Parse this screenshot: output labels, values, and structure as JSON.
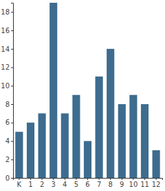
{
  "chart_data": {
    "type": "bar",
    "categories": [
      "K",
      "1",
      "2",
      "3",
      "4",
      "5",
      "6",
      "7",
      "8",
      "9",
      "10",
      "11",
      "12"
    ],
    "values": [
      5,
      6,
      7,
      19,
      7,
      9,
      4,
      11,
      14,
      8,
      9,
      8,
      3
    ],
    "color": "#3d6c8f",
    "ylim": [
      0,
      19
    ],
    "yticks": [
      0,
      2,
      4,
      6,
      8,
      10,
      12,
      14,
      16,
      18
    ],
    "grid": false
  }
}
